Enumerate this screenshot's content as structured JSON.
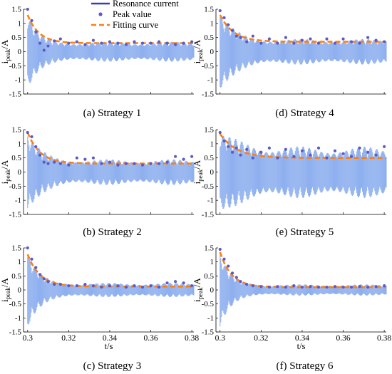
{
  "legend": {
    "items": [
      {
        "label": "Resonance current",
        "symbol": "line",
        "color": "#3a3ab8"
      },
      {
        "label": "Peak value",
        "symbol": "dot",
        "color": "#5a5ac8"
      },
      {
        "label": "Fitting curve",
        "symbol": "dash",
        "color": "#ff7f0e"
      }
    ],
    "placement": "top-center"
  },
  "colors": {
    "current_fill": "#8fb0ef",
    "peak_dot": "#5a5ac8",
    "fitting_curve": "#ff7f0e",
    "axis": "#000000"
  },
  "y_axis_label": {
    "prefix": "i",
    "subscript": "peak",
    "suffix": "/A"
  },
  "x_axis_label": "t/s",
  "chart_data": [
    {
      "type": "line",
      "caption": "(a) Strategy 1",
      "xlim": [
        0.298,
        0.381
      ],
      "ylim": [
        -1.5,
        1.5
      ],
      "xticks": [
        0.3,
        0.32,
        0.34,
        0.36,
        0.38
      ],
      "yticks": [
        -1.5,
        -1,
        -0.5,
        0,
        0.5,
        1,
        1.5
      ],
      "show_xticklabels": false,
      "series": [
        {
          "name": "Resonance current",
          "style": "oscillation",
          "envelope": {
            "t0": 0.3,
            "initial": 1.5,
            "final": 0.35,
            "decay": 0.0045
          }
        },
        {
          "name": "Peak value",
          "style": "markers",
          "x": [
            0.3,
            0.302,
            0.304,
            0.306,
            0.308,
            0.31,
            0.313,
            0.316,
            0.32,
            0.324,
            0.328,
            0.332,
            0.336,
            0.34,
            0.344,
            0.348,
            0.352,
            0.356,
            0.36,
            0.364,
            0.368,
            0.372,
            0.376,
            0.38
          ],
          "y": [
            1.5,
            1.1,
            0.7,
            0.3,
            0.05,
            0.2,
            0.38,
            0.45,
            0.3,
            0.35,
            0.25,
            0.4,
            0.3,
            0.35,
            0.3,
            0.25,
            0.35,
            0.3,
            0.3,
            0.35,
            0.3,
            0.25,
            0.3,
            0.35
          ]
        },
        {
          "name": "Fitting curve",
          "style": "fit",
          "fit": {
            "a": 0.3,
            "b": 1.0,
            "tau": 0.0055,
            "t0": 0.3
          }
        }
      ]
    },
    {
      "type": "line",
      "caption": "(d) Strategy 4",
      "xlim": [
        0.298,
        0.381
      ],
      "ylim": [
        -1.5,
        1.5
      ],
      "xticks": [
        0.3,
        0.32,
        0.34,
        0.36,
        0.38
      ],
      "yticks": [
        -1.5,
        -1,
        -0.5,
        0,
        0.5,
        1,
        1.5
      ],
      "show_xticklabels": false,
      "series": [
        {
          "name": "Resonance current",
          "style": "oscillation",
          "envelope": {
            "t0": 0.3,
            "initial": 1.5,
            "final": 0.45,
            "decay": 0.0065
          }
        },
        {
          "name": "Peak value",
          "style": "markers",
          "x": [
            0.3,
            0.302,
            0.304,
            0.306,
            0.308,
            0.31,
            0.313,
            0.316,
            0.32,
            0.324,
            0.328,
            0.332,
            0.336,
            0.34,
            0.344,
            0.348,
            0.352,
            0.356,
            0.36,
            0.364,
            0.368,
            0.372,
            0.376,
            0.38
          ],
          "y": [
            1.45,
            1.2,
            0.95,
            0.75,
            0.55,
            0.5,
            0.35,
            0.55,
            0.3,
            0.45,
            0.3,
            0.5,
            0.3,
            0.4,
            0.45,
            0.3,
            0.45,
            0.3,
            0.45,
            0.35,
            0.3,
            0.5,
            0.4,
            0.35
          ]
        },
        {
          "name": "Fitting curve",
          "style": "fit",
          "fit": {
            "a": 0.35,
            "b": 0.95,
            "tau": 0.0065,
            "t0": 0.3
          }
        }
      ]
    },
    {
      "type": "line",
      "caption": "(b) Strategy 2",
      "xlim": [
        0.298,
        0.381
      ],
      "ylim": [
        -1.5,
        1.5
      ],
      "xticks": [
        0.3,
        0.32,
        0.34,
        0.36,
        0.38
      ],
      "yticks": [
        -1.5,
        -1,
        -0.5,
        0,
        0.5,
        1,
        1.5
      ],
      "show_xticklabels": false,
      "series": [
        {
          "name": "Resonance current",
          "style": "oscillation",
          "envelope": {
            "t0": 0.3,
            "initial": 1.5,
            "final": 0.45,
            "decay": 0.006
          }
        },
        {
          "name": "Peak value",
          "style": "markers",
          "x": [
            0.3,
            0.302,
            0.304,
            0.306,
            0.308,
            0.31,
            0.313,
            0.316,
            0.32,
            0.324,
            0.328,
            0.332,
            0.336,
            0.34,
            0.344,
            0.348,
            0.352,
            0.356,
            0.36,
            0.364,
            0.368,
            0.372,
            0.376,
            0.38
          ],
          "y": [
            1.4,
            1.25,
            0.9,
            0.6,
            0.35,
            0.3,
            0.35,
            0.3,
            0.25,
            0.5,
            0.45,
            0.5,
            0.3,
            0.35,
            0.25,
            0.3,
            0.3,
            0.25,
            0.3,
            0.3,
            0.35,
            0.55,
            0.45,
            0.55
          ]
        },
        {
          "name": "Fitting curve",
          "style": "fit",
          "fit": {
            "a": 0.3,
            "b": 1.1,
            "tau": 0.006,
            "t0": 0.3
          }
        }
      ]
    },
    {
      "type": "line",
      "caption": "(e) Strategy 5",
      "xlim": [
        0.298,
        0.381
      ],
      "ylim": [
        -1.5,
        1.5
      ],
      "xticks": [
        0.3,
        0.32,
        0.34,
        0.36,
        0.38
      ],
      "yticks": [
        -1.5,
        -1,
        -0.5,
        0,
        0.5,
        1,
        1.5
      ],
      "show_xticklabels": false,
      "series": [
        {
          "name": "Resonance current",
          "style": "oscillation",
          "envelope": {
            "t0": 0.3,
            "initial": 1.5,
            "final": 0.9,
            "decay": 0.01
          }
        },
        {
          "name": "Peak value",
          "style": "markers",
          "x": [
            0.3,
            0.302,
            0.304,
            0.306,
            0.308,
            0.31,
            0.313,
            0.316,
            0.32,
            0.324,
            0.328,
            0.332,
            0.336,
            0.34,
            0.344,
            0.348,
            0.352,
            0.356,
            0.36,
            0.364,
            0.368,
            0.372,
            0.376,
            0.38
          ],
          "y": [
            1.4,
            1.1,
            0.9,
            0.7,
            0.85,
            0.6,
            0.8,
            0.5,
            0.7,
            0.85,
            0.5,
            0.8,
            0.55,
            0.75,
            0.6,
            0.85,
            0.5,
            0.75,
            0.65,
            0.55,
            0.85,
            0.7,
            0.6,
            0.9
          ]
        },
        {
          "name": "Fitting curve",
          "style": "fit",
          "fit": {
            "a": 0.5,
            "b": 0.85,
            "tau": 0.008,
            "t0": 0.3
          }
        }
      ]
    },
    {
      "type": "line",
      "caption": "(c) Strategy 3",
      "xlim": [
        0.298,
        0.381
      ],
      "ylim": [
        -1.5,
        1.5
      ],
      "xticks": [
        0.3,
        0.32,
        0.34,
        0.36,
        0.38
      ],
      "xticklabels": [
        "0.3",
        "0.32",
        "0.34",
        "0.36",
        "0.38"
      ],
      "yticks": [
        -1.5,
        -1,
        -0.5,
        0,
        0.5,
        1,
        1.5
      ],
      "show_xticklabels": true,
      "xlabel": "t/s",
      "series": [
        {
          "name": "Resonance current",
          "style": "oscillation",
          "envelope": {
            "t0": 0.3,
            "initial": 1.5,
            "final": 0.25,
            "decay": 0.005
          }
        },
        {
          "name": "Peak value",
          "style": "markers",
          "x": [
            0.3,
            0.302,
            0.304,
            0.306,
            0.308,
            0.31,
            0.313,
            0.316,
            0.32,
            0.324,
            0.328,
            0.332,
            0.336,
            0.34,
            0.344,
            0.348,
            0.352,
            0.356,
            0.36,
            0.364,
            0.368,
            0.372,
            0.376,
            0.38
          ],
          "y": [
            1.5,
            1.1,
            0.8,
            0.55,
            0.4,
            0.3,
            0.2,
            0.2,
            0.15,
            0.15,
            0.2,
            0.15,
            0.1,
            0.15,
            0.15,
            0.1,
            0.15,
            0.1,
            0.15,
            0.1,
            0.25,
            0.3,
            0.25,
            0.15
          ]
        },
        {
          "name": "Fitting curve",
          "style": "fit",
          "fit": {
            "a": 0.12,
            "b": 1.15,
            "tau": 0.006,
            "t0": 0.3
          }
        }
      ]
    },
    {
      "type": "line",
      "caption": "(f) Strategy 6",
      "xlim": [
        0.298,
        0.381
      ],
      "ylim": [
        -1.5,
        1.5
      ],
      "xticks": [
        0.3,
        0.32,
        0.34,
        0.36,
        0.38
      ],
      "xticklabels": [
        "0.3",
        "0.32",
        "0.34",
        "0.36",
        "0.38"
      ],
      "yticks": [
        -1.5,
        -1,
        -0.5,
        0,
        0.5,
        1,
        1.5
      ],
      "show_xticklabels": true,
      "xlabel": "t/s",
      "series": [
        {
          "name": "Resonance current",
          "style": "oscillation",
          "envelope": {
            "t0": 0.3,
            "initial": 1.5,
            "final": 0.2,
            "decay": 0.0045
          }
        },
        {
          "name": "Peak value",
          "style": "markers",
          "x": [
            0.3,
            0.302,
            0.304,
            0.306,
            0.308,
            0.31,
            0.313,
            0.316,
            0.32,
            0.324,
            0.328,
            0.332,
            0.336,
            0.34,
            0.344,
            0.348,
            0.352,
            0.356,
            0.36,
            0.364,
            0.368,
            0.372,
            0.376,
            0.38
          ],
          "y": [
            1.45,
            1.1,
            0.85,
            0.6,
            0.45,
            0.3,
            0.2,
            0.15,
            0.12,
            0.1,
            0.12,
            0.1,
            0.15,
            0.1,
            0.12,
            0.1,
            0.1,
            0.12,
            0.1,
            0.1,
            0.12,
            0.1,
            0.12,
            0.15
          ]
        },
        {
          "name": "Fitting curve",
          "style": "fit",
          "fit": {
            "a": 0.1,
            "b": 1.25,
            "tau": 0.0055,
            "t0": 0.3
          }
        }
      ]
    }
  ]
}
